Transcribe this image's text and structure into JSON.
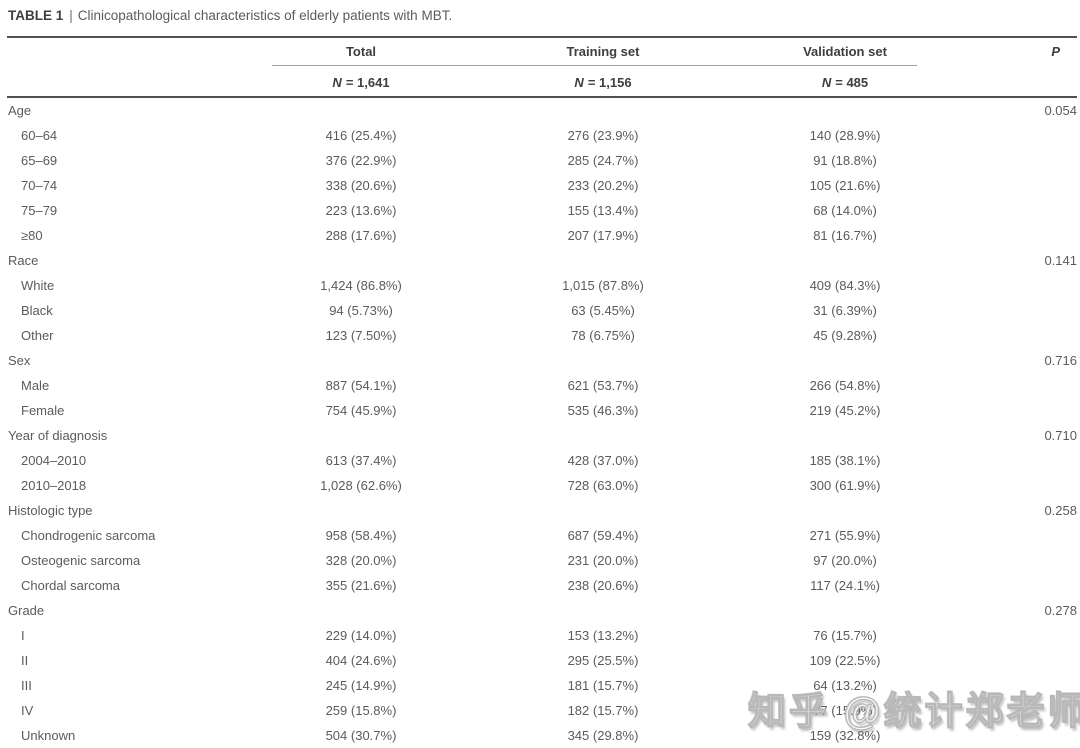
{
  "table": {
    "caption_label": "TABLE 1",
    "caption_separator": "|",
    "caption_text": "Clinicopathological characteristics of elderly patients with MBT.",
    "columns": [
      {
        "label": "Total",
        "n_label": "N",
        "n_value": "= 1,641"
      },
      {
        "label": "Training set",
        "n_label": "N",
        "n_value": "= 1,156"
      },
      {
        "label": "Validation set",
        "n_label": "N",
        "n_value": "= 485"
      }
    ],
    "p_header": "P",
    "rows": [
      {
        "label": "Age",
        "indent": false,
        "total": "",
        "training": "",
        "validation": "",
        "p": "0.054"
      },
      {
        "label": "60–64",
        "indent": true,
        "total": "416 (25.4%)",
        "training": "276 (23.9%)",
        "validation": "140 (28.9%)",
        "p": ""
      },
      {
        "label": "65–69",
        "indent": true,
        "total": "376 (22.9%)",
        "training": "285 (24.7%)",
        "validation": "91 (18.8%)",
        "p": ""
      },
      {
        "label": "70–74",
        "indent": true,
        "total": "338 (20.6%)",
        "training": "233 (20.2%)",
        "validation": "105 (21.6%)",
        "p": ""
      },
      {
        "label": "75–79",
        "indent": true,
        "total": "223 (13.6%)",
        "training": "155 (13.4%)",
        "validation": "68 (14.0%)",
        "p": ""
      },
      {
        "label": "≥80",
        "indent": true,
        "total": "288 (17.6%)",
        "training": "207 (17.9%)",
        "validation": "81 (16.7%)",
        "p": ""
      },
      {
        "label": "Race",
        "indent": false,
        "total": "",
        "training": "",
        "validation": "",
        "p": "0.141"
      },
      {
        "label": "White",
        "indent": true,
        "total": "1,424 (86.8%)",
        "training": "1,015 (87.8%)",
        "validation": "409 (84.3%)",
        "p": ""
      },
      {
        "label": "Black",
        "indent": true,
        "total": "94 (5.73%)",
        "training": "63 (5.45%)",
        "validation": "31 (6.39%)",
        "p": ""
      },
      {
        "label": "Other",
        "indent": true,
        "total": "123 (7.50%)",
        "training": "78 (6.75%)",
        "validation": "45 (9.28%)",
        "p": ""
      },
      {
        "label": "Sex",
        "indent": false,
        "total": "",
        "training": "",
        "validation": "",
        "p": "0.716"
      },
      {
        "label": "Male",
        "indent": true,
        "total": "887 (54.1%)",
        "training": "621 (53.7%)",
        "validation": "266 (54.8%)",
        "p": ""
      },
      {
        "label": "Female",
        "indent": true,
        "total": "754 (45.9%)",
        "training": "535 (46.3%)",
        "validation": "219 (45.2%)",
        "p": ""
      },
      {
        "label": "Year of diagnosis",
        "indent": false,
        "total": "",
        "training": "",
        "validation": "",
        "p": "0.710"
      },
      {
        "label": "2004–2010",
        "indent": true,
        "total": "613 (37.4%)",
        "training": "428 (37.0%)",
        "validation": "185 (38.1%)",
        "p": ""
      },
      {
        "label": "2010–2018",
        "indent": true,
        "total": "1,028 (62.6%)",
        "training": "728 (63.0%)",
        "validation": "300 (61.9%)",
        "p": ""
      },
      {
        "label": "Histologic type",
        "indent": false,
        "total": "",
        "training": "",
        "validation": "",
        "p": "0.258"
      },
      {
        "label": "Chondrogenic sarcoma",
        "indent": true,
        "total": "958 (58.4%)",
        "training": "687 (59.4%)",
        "validation": "271 (55.9%)",
        "p": ""
      },
      {
        "label": "Osteogenic sarcoma",
        "indent": true,
        "total": "328 (20.0%)",
        "training": "231 (20.0%)",
        "validation": "97 (20.0%)",
        "p": ""
      },
      {
        "label": "Chordal sarcoma",
        "indent": true,
        "total": "355 (21.6%)",
        "training": "238 (20.6%)",
        "validation": "117 (24.1%)",
        "p": ""
      },
      {
        "label": "Grade",
        "indent": false,
        "total": "",
        "training": "",
        "validation": "",
        "p": "0.278"
      },
      {
        "label": "I",
        "indent": true,
        "total": "229 (14.0%)",
        "training": "153 (13.2%)",
        "validation": "76 (15.7%)",
        "p": ""
      },
      {
        "label": "II",
        "indent": true,
        "total": "404 (24.6%)",
        "training": "295 (25.5%)",
        "validation": "109 (22.5%)",
        "p": ""
      },
      {
        "label": "III",
        "indent": true,
        "total": "245 (14.9%)",
        "training": "181 (15.7%)",
        "validation": "64 (13.2%)",
        "p": ""
      },
      {
        "label": "IV",
        "indent": true,
        "total": "259 (15.8%)",
        "training": "182 (15.7%)",
        "validation": "77 (15.9%)",
        "p": ""
      },
      {
        "label": "Unknown",
        "indent": true,
        "total": "504 (30.7%)",
        "training": "345 (29.8%)",
        "validation": "159 (32.8%)",
        "p": ""
      }
    ]
  },
  "watermark": {
    "text": "知乎 @统计郑老师"
  },
  "colors": {
    "heading_text": "#3e3e40",
    "body_text": "#5b5b5d",
    "rule": "#515154",
    "header_underline": "#a0a0a0",
    "background": "#ffffff"
  }
}
